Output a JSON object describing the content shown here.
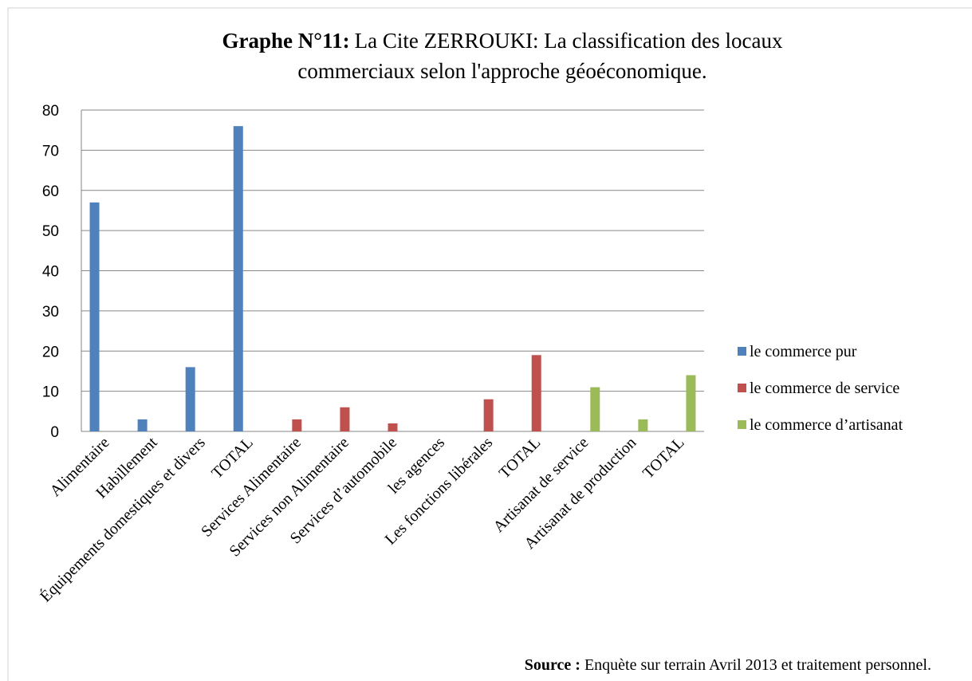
{
  "chart_data": {
    "type": "bar",
    "title_label": "Graphe N°11:",
    "title_line1": "La Cite ZERROUKI: La classification des locaux",
    "title_line2": "commerciaux selon l'approche géoéconomique.",
    "categories": [
      "Alimentaire",
      "Habillement",
      "Équipements domestiques et divers",
      "TOTAL",
      "Services Alimentaire",
      "Services non  Alimentaire",
      "Services d’automobile",
      "les agences",
      "Les fonctions libérales",
      "TOTAL",
      "Artisanat  de service",
      "Artisanat de production",
      "TOTAL"
    ],
    "series": [
      {
        "name": "le commerce pur",
        "color": "#4f81bd",
        "values": [
          57,
          3,
          16,
          76,
          null,
          null,
          null,
          null,
          null,
          null,
          null,
          null,
          null
        ]
      },
      {
        "name": "le commerce de service",
        "color": "#c0504d",
        "values": [
          null,
          null,
          null,
          null,
          3,
          6,
          2,
          0,
          8,
          19,
          null,
          null,
          null
        ]
      },
      {
        "name": "le commerce d’artisanat",
        "color": "#9bbb59",
        "values": [
          null,
          null,
          null,
          null,
          null,
          null,
          null,
          null,
          null,
          null,
          11,
          3,
          14
        ]
      }
    ],
    "ylim": [
      0,
      80
    ],
    "yticks": [
      0,
      10,
      20,
      30,
      40,
      50,
      60,
      70,
      80
    ],
    "grid": true,
    "legend": "right",
    "source_label": "Source :",
    "source": "Enquète sur terrain Avril 2013 et traitement personnel."
  }
}
